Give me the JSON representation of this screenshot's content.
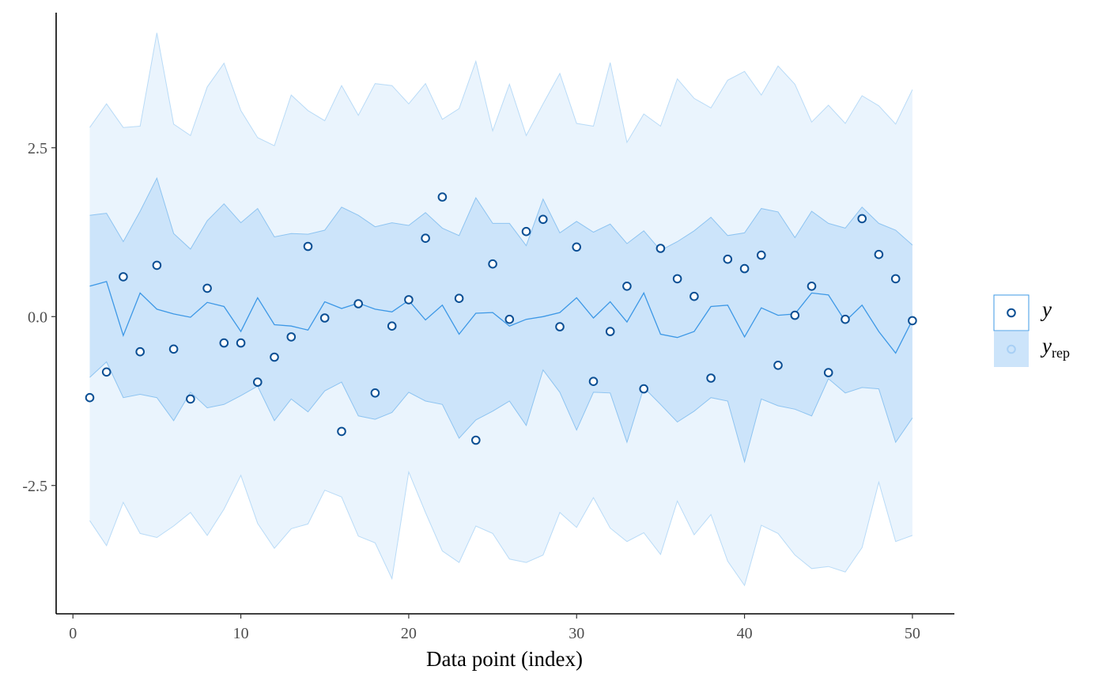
{
  "chart_data": {
    "type": "line",
    "title": "",
    "xlabel": "Data point (index)",
    "ylabel": "",
    "xlim": [
      -1,
      52.5
    ],
    "ylim": [
      -4.4,
      4.5
    ],
    "xticks": [
      0,
      10,
      20,
      30,
      40,
      50
    ],
    "xtick_labels": [
      "0",
      "10",
      "20",
      "30",
      "40",
      "50"
    ],
    "yticks": [
      2.5,
      0,
      -2.5
    ],
    "ytick_labels": [
      "2.5",
      "0.0",
      "-2.5"
    ],
    "grid": false,
    "legend_position": "right",
    "legend": {
      "y_label": "y",
      "yrep_label": "y",
      "yrep_subscript": "rep"
    },
    "colors": {
      "outer_band": "#eaf4fd",
      "outer_band_edge": "#b9dbf7",
      "inner_band": "#cce4fa",
      "inner_band_edge": "#8ec4f1",
      "median_line": "#3d98e6",
      "point_stroke": "#0b4f94",
      "legend_point": "#a8d0f5"
    },
    "x": [
      1,
      2,
      3,
      4,
      5,
      6,
      7,
      8,
      9,
      10,
      11,
      12,
      13,
      14,
      15,
      16,
      17,
      18,
      19,
      20,
      21,
      22,
      23,
      24,
      25,
      26,
      27,
      28,
      29,
      30,
      31,
      32,
      33,
      34,
      35,
      36,
      37,
      38,
      39,
      40,
      41,
      42,
      43,
      44,
      45,
      46,
      47,
      48,
      49,
      50
    ],
    "series": [
      {
        "name": "y",
        "values": [
          -1.2,
          -0.82,
          0.59,
          -0.52,
          0.76,
          -0.48,
          -1.22,
          0.42,
          -0.39,
          -0.39,
          -0.97,
          -0.6,
          -0.3,
          1.04,
          -0.02,
          -1.7,
          0.19,
          -1.13,
          -0.14,
          0.25,
          1.16,
          1.77,
          0.27,
          -1.83,
          0.78,
          -0.04,
          1.26,
          1.44,
          -0.15,
          1.03,
          -0.96,
          -0.22,
          0.45,
          -1.07,
          1.01,
          0.56,
          0.3,
          -0.91,
          0.85,
          0.71,
          0.91,
          -0.72,
          0.02,
          0.45,
          -0.83,
          -0.04,
          1.45,
          0.92,
          0.56,
          -0.06
        ]
      },
      {
        "name": "y_rep median",
        "values": [
          0.45,
          0.52,
          -0.28,
          0.35,
          0.11,
          0.04,
          -0.01,
          0.21,
          0.15,
          -0.22,
          0.28,
          -0.12,
          -0.14,
          -0.2,
          0.22,
          0.12,
          0.2,
          0.11,
          0.07,
          0.24,
          -0.05,
          0.17,
          -0.26,
          0.05,
          0.06,
          -0.14,
          -0.04,
          0.0,
          0.06,
          0.28,
          -0.02,
          0.22,
          -0.08,
          0.35,
          -0.26,
          -0.31,
          -0.22,
          0.15,
          0.17,
          -0.3,
          0.13,
          0.02,
          0.04,
          0.35,
          0.32,
          -0.07,
          0.17,
          -0.22,
          -0.54,
          -0.05
        ]
      },
      {
        "name": "y_rep 50% lower",
        "values": [
          -0.9,
          -0.67,
          -1.2,
          -1.15,
          -1.2,
          -1.54,
          -1.12,
          -1.35,
          -1.3,
          -1.17,
          -1.03,
          -1.54,
          -1.22,
          -1.41,
          -1.1,
          -0.97,
          -1.47,
          -1.52,
          -1.42,
          -1.12,
          -1.25,
          -1.3,
          -1.8,
          -1.53,
          -1.4,
          -1.25,
          -1.61,
          -0.79,
          -1.12,
          -1.68,
          -1.12,
          -1.13,
          -1.86,
          -1.05,
          -1.3,
          -1.56,
          -1.4,
          -1.2,
          -1.25,
          -2.15,
          -1.22,
          -1.32,
          -1.37,
          -1.47,
          -0.92,
          -1.13,
          -1.05,
          -1.07,
          -1.86,
          -1.5
        ]
      },
      {
        "name": "y_rep 50% upper",
        "values": [
          1.5,
          1.53,
          1.11,
          1.56,
          2.05,
          1.23,
          1.0,
          1.42,
          1.67,
          1.39,
          1.6,
          1.18,
          1.23,
          1.22,
          1.28,
          1.62,
          1.5,
          1.33,
          1.39,
          1.35,
          1.54,
          1.31,
          1.2,
          1.76,
          1.38,
          1.38,
          1.05,
          1.74,
          1.24,
          1.41,
          1.25,
          1.37,
          1.08,
          1.27,
          0.98,
          1.11,
          1.27,
          1.47,
          1.2,
          1.24,
          1.6,
          1.55,
          1.17,
          1.56,
          1.38,
          1.31,
          1.62,
          1.38,
          1.28,
          1.06
        ]
      },
      {
        "name": "y_rep 90% lower",
        "values": [
          -3.02,
          -3.39,
          -2.75,
          -3.21,
          -3.27,
          -3.1,
          -2.9,
          -3.24,
          -2.85,
          -2.35,
          -3.06,
          -3.43,
          -3.14,
          -3.07,
          -2.57,
          -2.67,
          -3.25,
          -3.35,
          -3.88,
          -2.3,
          -2.9,
          -3.47,
          -3.64,
          -3.1,
          -3.21,
          -3.59,
          -3.64,
          -3.53,
          -2.9,
          -3.12,
          -2.68,
          -3.13,
          -3.33,
          -3.2,
          -3.52,
          -2.73,
          -3.23,
          -2.93,
          -3.62,
          -3.98,
          -3.09,
          -3.21,
          -3.53,
          -3.73,
          -3.7,
          -3.78,
          -3.42,
          -2.45,
          -3.33,
          -3.24
        ]
      },
      {
        "name": "y_rep 90% upper",
        "values": [
          2.8,
          3.15,
          2.8,
          2.82,
          4.2,
          2.85,
          2.68,
          3.4,
          3.75,
          3.05,
          2.65,
          2.53,
          3.28,
          3.05,
          2.9,
          3.42,
          2.98,
          3.45,
          3.42,
          3.15,
          3.45,
          2.92,
          3.08,
          3.78,
          2.75,
          3.44,
          2.68,
          3.15,
          3.6,
          2.86,
          2.82,
          3.76,
          2.58,
          3.0,
          2.82,
          3.52,
          3.23,
          3.09,
          3.5,
          3.63,
          3.28,
          3.71,
          3.44,
          2.88,
          3.13,
          2.86,
          3.27,
          3.12,
          2.85,
          3.36
        ]
      }
    ]
  }
}
